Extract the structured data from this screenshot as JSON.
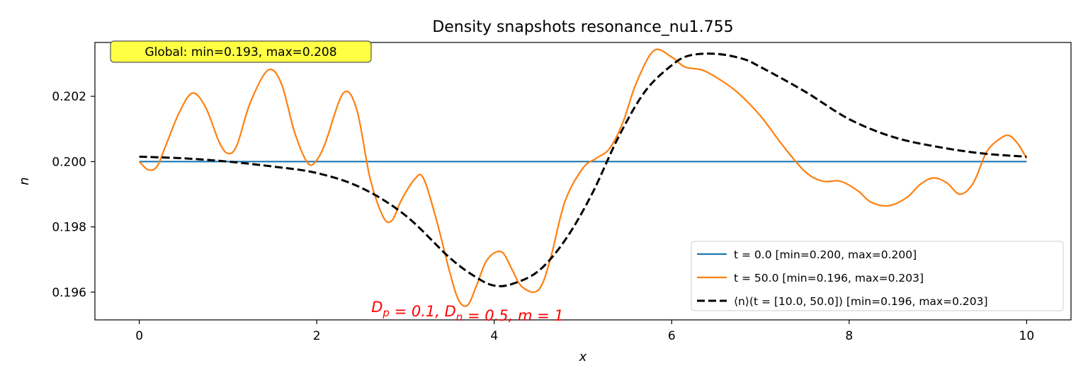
{
  "chart_data": {
    "type": "line",
    "title": "Density snapshots resonance_nu1.755",
    "xlabel": "x",
    "ylabel": "n",
    "xlim": [
      -0.5,
      10.5
    ],
    "ylim": [
      0.19515,
      0.20365
    ],
    "xticks": [
      0,
      2,
      4,
      6,
      8,
      10
    ],
    "xtick_labels": [
      "0",
      "2",
      "4",
      "6",
      "8",
      "10"
    ],
    "yticks": [
      0.196,
      0.198,
      0.2,
      0.202
    ],
    "ytick_labels": [
      "0.196",
      "0.198",
      "0.200",
      "0.202"
    ],
    "grid": false,
    "legend_position": "lower-right",
    "series": [
      {
        "name": "t = 0.0 [min=0.200, max=0.200]",
        "color": "#1f77b4",
        "dash": "solid",
        "x": [
          0,
          10
        ],
        "y": [
          0.2,
          0.2
        ]
      },
      {
        "name": "t = 50.0 [min=0.196, max=0.203]",
        "color": "#ff7f0e",
        "dash": "solid",
        "x": [
          0,
          0.1,
          0.2,
          0.3,
          0.45,
          0.6,
          0.75,
          0.9,
          1.0,
          1.1,
          1.25,
          1.45,
          1.6,
          1.75,
          1.9,
          2.0,
          2.1,
          2.3,
          2.45,
          2.6,
          2.75,
          2.85,
          2.95,
          3.1,
          3.2,
          3.35,
          3.5,
          3.6,
          3.7,
          3.8,
          3.9,
          4.0,
          4.1,
          4.2,
          4.3,
          4.45,
          4.55,
          4.65,
          4.8,
          5.0,
          5.15,
          5.3,
          5.45,
          5.6,
          5.8,
          6.0,
          6.15,
          6.35,
          6.55,
          6.75,
          7.0,
          7.25,
          7.5,
          7.7,
          7.9,
          8.1,
          8.25,
          8.45,
          8.65,
          8.8,
          8.95,
          9.1,
          9.25,
          9.4,
          9.55,
          9.7,
          9.8,
          9.9,
          10.0
        ],
        "y": [
          0.2,
          0.19975,
          0.19985,
          0.2005,
          0.2015,
          0.2021,
          0.20165,
          0.2006,
          0.20025,
          0.2005,
          0.2018,
          0.2028,
          0.2024,
          0.2009,
          0.19995,
          0.20005,
          0.2006,
          0.2021,
          0.2016,
          0.1995,
          0.1983,
          0.1982,
          0.1988,
          0.19945,
          0.1995,
          0.1982,
          0.1966,
          0.19575,
          0.1956,
          0.1962,
          0.1969,
          0.1972,
          0.1972,
          0.1967,
          0.1962,
          0.196,
          0.1963,
          0.1972,
          0.1988,
          0.1998,
          0.2001,
          0.2004,
          0.2012,
          0.2024,
          0.2034,
          0.2032,
          0.2029,
          0.2028,
          0.2025,
          0.2021,
          0.2014,
          0.2005,
          0.1997,
          0.1994,
          0.1994,
          0.1991,
          0.19875,
          0.19865,
          0.1989,
          0.1993,
          0.1995,
          0.19935,
          0.199,
          0.19935,
          0.2003,
          0.2007,
          0.2008,
          0.20055,
          0.2001
        ]
      },
      {
        "name": "⟨n⟩(t = [10.0, 50.0]) [min=0.196, max=0.203]",
        "color": "#000000",
        "dash": "dashed",
        "x": [
          0,
          0.5,
          1.0,
          1.5,
          2.0,
          2.5,
          3.0,
          3.5,
          3.8,
          4.0,
          4.2,
          4.5,
          4.8,
          5.1,
          5.4,
          5.7,
          6.0,
          6.2,
          6.5,
          6.8,
          7.0,
          7.5,
          8.0,
          8.5,
          9.0,
          9.5,
          10.0
        ],
        "y": [
          0.20015,
          0.2001,
          0.2,
          0.19985,
          0.19965,
          0.1992,
          0.19835,
          0.19705,
          0.19645,
          0.1962,
          0.19625,
          0.19665,
          0.1976,
          0.199,
          0.20075,
          0.20215,
          0.20295,
          0.20325,
          0.2033,
          0.20315,
          0.2029,
          0.20215,
          0.2013,
          0.20075,
          0.20045,
          0.20025,
          0.20015
        ]
      }
    ],
    "annotations": {
      "global": "Global: min=0.193, max=0.208",
      "params": "D_p = 0.1, D_n = 0.5, m = 1"
    },
    "colors": {
      "global_box_fill": "#ffff44",
      "params_text": "#ff0000"
    }
  }
}
